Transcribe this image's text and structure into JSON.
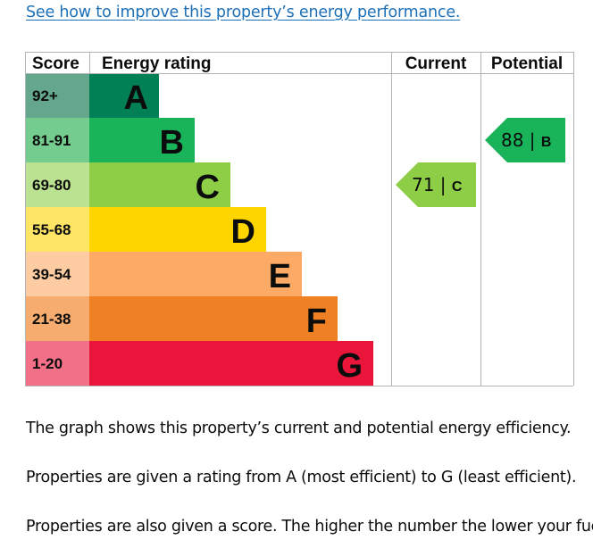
{
  "link_text": "See how to improve this property’s energy performance.",
  "chart_data": {
    "type": "bar",
    "headers": {
      "score": "Score",
      "energy_rating": "Energy rating",
      "current": "Current",
      "potential": "Potential"
    },
    "bands": [
      {
        "score": "92+",
        "letter": "A",
        "color": "#008054",
        "score_bg": "#64a78d"
      },
      {
        "score": "81-91",
        "letter": "B",
        "color": "#19b459",
        "score_bg": "#74cc8e"
      },
      {
        "score": "69-80",
        "letter": "C",
        "color": "#8dce46",
        "score_bg": "#bbe290"
      },
      {
        "score": "55-68",
        "letter": "D",
        "color": "#ffd500",
        "score_bg": "#ffe566"
      },
      {
        "score": "39-54",
        "letter": "E",
        "color": "#fcaa65",
        "score_bg": "#fdcca3"
      },
      {
        "score": "21-38",
        "letter": "F",
        "color": "#ef8023",
        "score_bg": "#f5ac6e"
      },
      {
        "score": "1-20",
        "letter": "G",
        "color": "#e9153b",
        "score_bg": "#f37089"
      }
    ],
    "current": {
      "value": 71,
      "letter": "C",
      "color": "#8dce46"
    },
    "potential": {
      "value": 88,
      "letter": "B",
      "color": "#19b459"
    }
  },
  "paragraphs": [
    "The graph shows this property’s current and potential energy efficiency.",
    "Properties are given a rating from A (most efficient) to G (least efficient).",
    "Properties are also given a score. The higher the number the lower your fuel"
  ]
}
